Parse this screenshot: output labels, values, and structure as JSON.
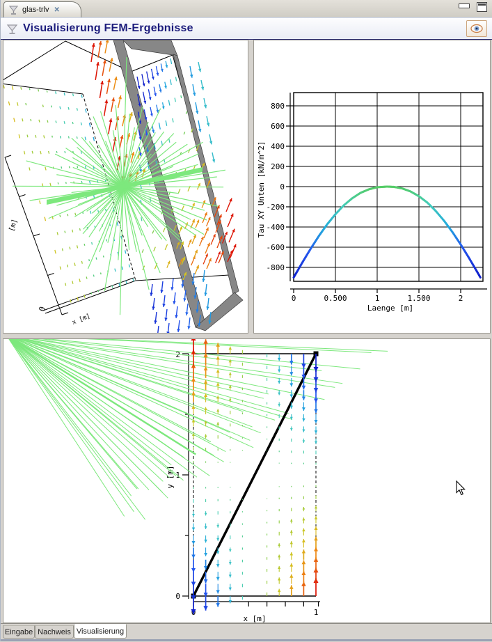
{
  "window": {
    "tab_title": "glas-trlv",
    "close_glyph": "✕"
  },
  "header": {
    "title": "Visualisierung FEM-Ergebnisse"
  },
  "bottom_tabs": [
    {
      "label": "Eingabe",
      "active": false
    },
    {
      "label": "Nachweis",
      "active": false
    },
    {
      "label": "Visualisierung",
      "active": true
    }
  ],
  "colors": {
    "title_navy": "#1c1c7c",
    "chrome_gray": "#d6d3ce",
    "ray_green": "#7de87d",
    "slab_gray": "#878787",
    "member_black": "#000000"
  },
  "chart_data": [
    {
      "type": "line",
      "panel": "top-right",
      "title": "",
      "ylabel": "Tau XY Unten [kN/m^2]",
      "xlabel": "Laenge [m]",
      "xlim": [
        0,
        2.27
      ],
      "ylim": [
        -938,
        931
      ],
      "xticks": [
        0,
        0.5,
        1,
        1.5,
        2
      ],
      "xtick_labels": [
        "0",
        "0.500",
        "1",
        "1.500",
        "2"
      ],
      "yticks": [
        800,
        600,
        400,
        200,
        0,
        -200,
        -400,
        -600,
        -800
      ],
      "grid": true,
      "line_width": 3,
      "colormap": "value-mapped jet: 0 -> green, -400 -> cyan, -900 -> blue",
      "x": [
        0,
        0.1,
        0.2,
        0.3,
        0.4,
        0.5,
        0.6,
        0.7,
        0.8,
        0.9,
        1.0,
        1.118,
        1.2,
        1.3,
        1.4,
        1.5,
        1.6,
        1.7,
        1.8,
        1.9,
        2.0,
        2.1,
        2.2,
        2.236
      ],
      "y": [
        -900,
        -757,
        -620,
        -491,
        -375,
        -273,
        -186,
        -116,
        -62,
        -27,
        -6,
        0,
        -3,
        -18,
        -48,
        -95,
        -158,
        -240,
        -337,
        -449,
        -573,
        -707,
        -848,
        -900
      ]
    },
    {
      "type": "quiver",
      "panel": "bottom",
      "xlabel": "x  [m]",
      "ylabel": "y  [m]",
      "xlim": [
        0,
        1
      ],
      "ylim": [
        0,
        2
      ],
      "xtick_labels": [
        "0",
        "1"
      ],
      "ytick_labels": [
        "0",
        "1",
        "2"
      ],
      "grid_step": 0.1,
      "field": "v(x,y) = -(x-0.5)/0.5 * (y-1)  (vertical arrows, up = positive)",
      "arrow_scale_m": 0.15,
      "colormap": "jet: -1 blue, 0 green, +1 red",
      "member_line": {
        "from": [
          0,
          0
        ],
        "to": [
          1,
          2
        ]
      },
      "ray_fan": {
        "origin_corner": "top-left",
        "count": 40,
        "color": "#7de87d"
      }
    },
    {
      "type": "3d-view",
      "panel": "top-left",
      "description": "3D FEM view: wireframe box, gray glass pane seen edge-on, jet-colored vector field on faces, green ray burst from load point",
      "axis_label": "[m]",
      "axis_origin_label": "0",
      "bottom_axis_label": "x [m]"
    }
  ]
}
